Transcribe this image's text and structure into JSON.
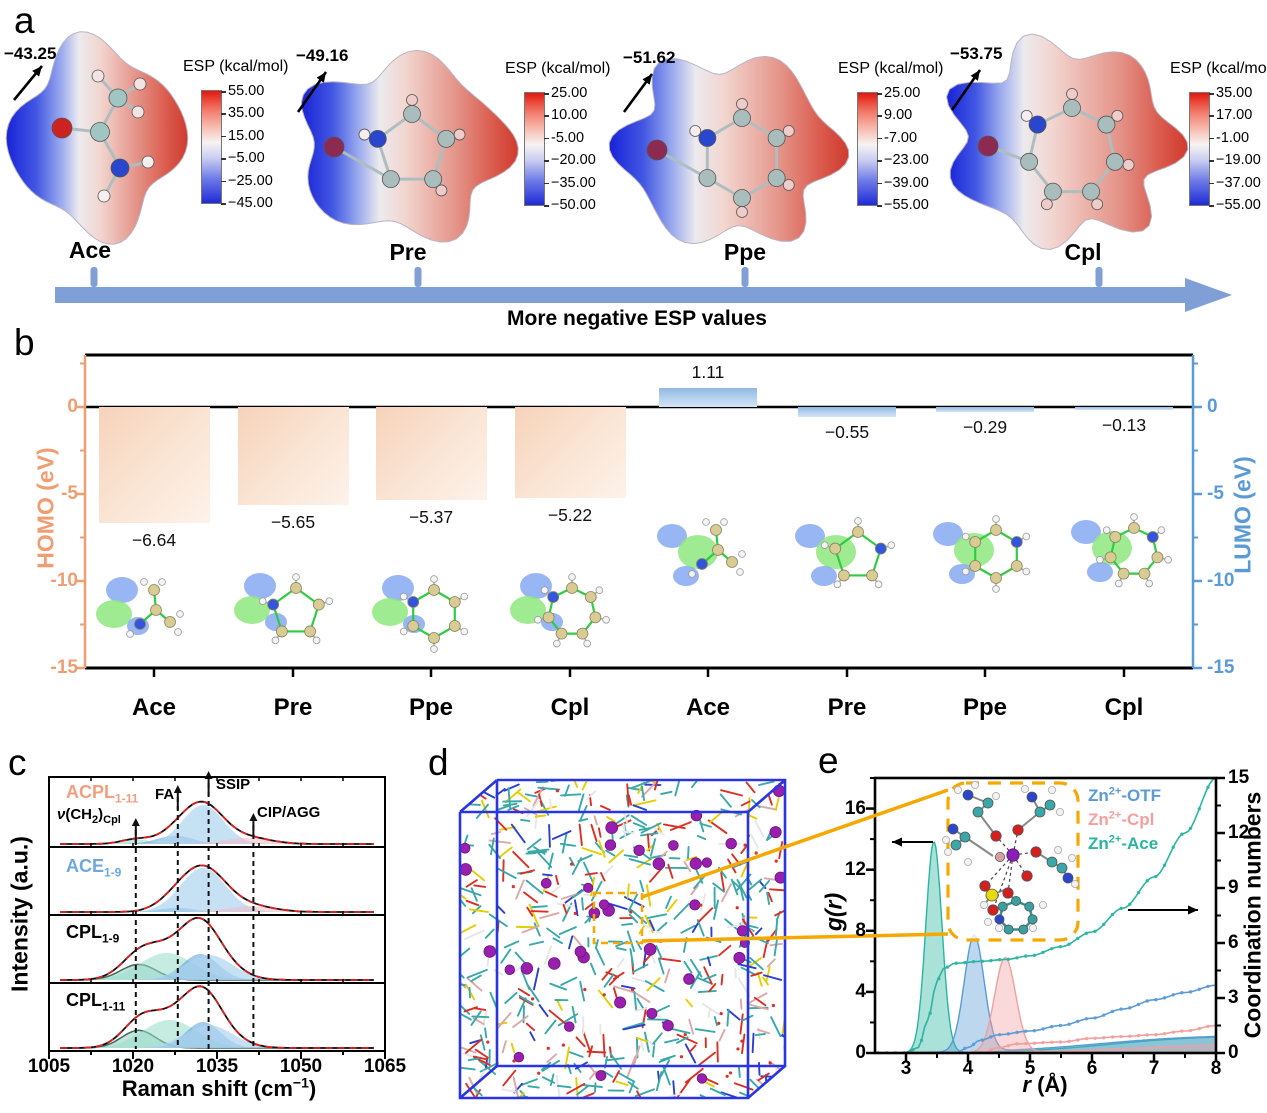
{
  "panel_a": {
    "label": "a",
    "caption": "More negative ESP values",
    "molecules": [
      {
        "name": "Ace",
        "esp_value": "−43.25",
        "cb_title": "ESP (kcal/mol)",
        "cb_ticks": [
          "55.00",
          "35.00",
          "15.00",
          "−5.00",
          "−25.00",
          "−45.00"
        ]
      },
      {
        "name": "Pre",
        "esp_value": "−49.16",
        "cb_title": "ESP (kcal/mol)",
        "cb_ticks": [
          "25.00",
          "10.00",
          "-5.00",
          "−20.00",
          "−35.00",
          "−50.00"
        ]
      },
      {
        "name": "Ppe",
        "esp_value": "−51.62",
        "cb_title": "ESP (kcal/mol)",
        "cb_ticks": [
          "25.00",
          "9.00",
          "-7.00",
          "−23.00",
          "−39.00",
          "−55.00"
        ]
      },
      {
        "name": "Cpl",
        "esp_value": "−53.75",
        "cb_title": "ESP (kcal/mol)",
        "cb_ticks": [
          "35.00",
          "17.00",
          "-1.00",
          "−19.00",
          "−37.00",
          "−55.00"
        ]
      }
    ]
  },
  "panel_b": {
    "label": "b",
    "homo_axis": "HOMO (eV)",
    "lumo_axis": "LUMO (eV)",
    "left_ticks": [
      "0",
      "-5",
      "-10",
      "-15"
    ],
    "right_ticks": [
      "0",
      "-5",
      "-10",
      "-15"
    ],
    "homo_values": [
      "−6.64",
      "−5.65",
      "−5.37",
      "−5.22"
    ],
    "lumo_values": [
      "1.11",
      "−0.55",
      "−0.29",
      "−0.13"
    ],
    "categories": [
      "Ace",
      "Pre",
      "Ppe",
      "Cpl",
      "Ace",
      "Pre",
      "Ppe",
      "Cpl"
    ]
  },
  "panel_c": {
    "label": "c",
    "ylabel": "Intensity (a.u.)",
    "xlabel": {
      "pre": "Raman shift (cm",
      "sup": "−1",
      "post": ")"
    },
    "xticks": [
      "1005",
      "1020",
      "1035",
      "1050",
      "1065"
    ],
    "spectra": [
      {
        "base": "ACPL",
        "sub": "1-11"
      },
      {
        "base": "ACE",
        "sub": "1-9"
      },
      {
        "base": "CPL",
        "sub": "1-9"
      },
      {
        "base": "CPL",
        "sub": "1-11"
      }
    ],
    "ann1": {
      "it": "ν",
      "p1": "(CH",
      "s1": "2",
      "p2": ")",
      "s2": "Cpl"
    },
    "ann2": "FA",
    "ann3": "SSIP",
    "ann4": "CIP/AGG"
  },
  "panel_d": {
    "label": "d"
  },
  "panel_e": {
    "label": "e",
    "ylabel_left": "g(r)",
    "ylabel_right": "Coordination numbers",
    "xlabel": {
      "it": "r",
      "rest": " (Å)"
    },
    "left_ticks": [
      "0",
      "4",
      "8",
      "12",
      "16"
    ],
    "right_ticks": [
      "0",
      "3",
      "6",
      "9",
      "12",
      "15"
    ],
    "xticks": [
      "3",
      "4",
      "5",
      "6",
      "7",
      "8"
    ],
    "legend": [
      {
        "base": "Zn",
        "sup": "2+",
        "rest": "-OTF",
        "color": "#5b9bd5"
      },
      {
        "base": "Zn",
        "sup": "2+",
        "rest": "-Cpl",
        "color": "#f19f9f"
      },
      {
        "base": "Zn",
        "sup": "2+",
        "rest": "-Ace",
        "color": "#2bb5a0"
      }
    ]
  },
  "chart_data": [
    {
      "id": "homo_lumo",
      "type": "bar",
      "categories": [
        "Ace",
        "Pre",
        "Ppe",
        "Cpl"
      ],
      "series": [
        {
          "name": "HOMO (eV)",
          "values": [
            -6.64,
            -5.65,
            -5.37,
            -5.22
          ]
        },
        {
          "name": "LUMO (eV)",
          "values": [
            1.11,
            -0.55,
            -0.29,
            -0.13
          ]
        }
      ],
      "ylabel_left": "HOMO (eV)",
      "ylabel_right": "LUMO (eV)",
      "ylim": [
        -15,
        3
      ]
    },
    {
      "id": "raman",
      "type": "area",
      "title": "",
      "xlabel": "Raman shift (cm−1)",
      "ylabel": "Intensity (a.u.)",
      "xlim": [
        1005,
        1065
      ],
      "dashed_lines": [
        1020.5,
        1028,
        1033.5,
        1041.5
      ],
      "annotations": [
        "ν(CH2)Cpl",
        "FA",
        "SSIP",
        "CIP/AGG"
      ],
      "spectra": [
        {
          "name": "ACPL1-11",
          "components": [
            {
              "color": "teal",
              "center": 1020.5,
              "sigma": 2.6,
              "amp": 0.09
            },
            {
              "color": "steel",
              "center": 1027.5,
              "sigma": 3.2,
              "amp": 0.16
            },
            {
              "color": "lblue",
              "center": 1032.5,
              "sigma": 3.6,
              "amp": 0.75
            },
            {
              "color": "pink",
              "center": 1040.5,
              "sigma": 4.0,
              "amp": 0.12
            }
          ]
        },
        {
          "name": "ACE1-9",
          "components": [
            {
              "color": "teal",
              "center": 1026.0,
              "sigma": 3.0,
              "amp": 0.06
            },
            {
              "color": "steel",
              "center": 1028.0,
              "sigma": 3.0,
              "amp": 0.08
            },
            {
              "color": "lblue",
              "center": 1032.5,
              "sigma": 4.0,
              "amp": 0.85
            },
            {
              "color": "pink",
              "center": 1041.0,
              "sigma": 4.2,
              "amp": 0.11
            }
          ]
        },
        {
          "name": "CPL1-9",
          "components": [
            {
              "color": "dteal",
              "center": 1021.0,
              "sigma": 3.2,
              "amp": 0.3
            },
            {
              "color": "teal",
              "center": 1026.0,
              "sigma": 4.8,
              "amp": 0.52
            },
            {
              "color": "steel",
              "center": 1032.0,
              "sigma": 3.2,
              "amp": 0.5
            },
            {
              "color": "lblue",
              "center": 1033.5,
              "sigma": 4.3,
              "amp": 0.48
            }
          ]
        },
        {
          "name": "CPL1-11",
          "components": [
            {
              "color": "dteal",
              "center": 1021.0,
              "sigma": 3.0,
              "amp": 0.34
            },
            {
              "color": "teal",
              "center": 1026.5,
              "sigma": 4.8,
              "amp": 0.54
            },
            {
              "color": "steel",
              "center": 1032.5,
              "sigma": 3.1,
              "amp": 0.5
            },
            {
              "color": "lblue",
              "center": 1033.5,
              "sigma": 4.3,
              "amp": 0.44
            }
          ]
        }
      ]
    },
    {
      "id": "rdf",
      "type": "line",
      "xlabel": "r (Å)",
      "ylabel_left": "g(r)",
      "ylabel_right": "Coordination numbers",
      "xlim": [
        2.5,
        8
      ],
      "ylim_left": [
        0,
        18
      ],
      "ylim_right": [
        0,
        15
      ],
      "gr_series": [
        {
          "name": "Zn2+-Ace",
          "color": "#2bb5a0",
          "peak": {
            "center": 3.45,
            "sigma": 0.13,
            "height": 13.8
          },
          "tail": {
            "mid": 6.3,
            "width": 0.75,
            "height": 1.15
          }
        },
        {
          "name": "Zn2+-OTF",
          "color": "#5b9bd5",
          "peak": {
            "center": 4.1,
            "sigma": 0.16,
            "height": 7.6
          },
          "tail": {
            "mid": 6.1,
            "width": 0.85,
            "height": 1.2
          }
        },
        {
          "name": "Zn2+-Cpl",
          "color": "#f19f9f",
          "peak": {
            "center": 4.6,
            "sigma": 0.17,
            "height": 6.2
          },
          "tail": {
            "mid": 6.6,
            "width": 0.8,
            "height": 0.6
          }
        }
      ],
      "cn_series": [
        {
          "name": "Zn2+-Ace",
          "color": "#2bb5a0",
          "points": [
            [
              3.0,
              0
            ],
            [
              3.2,
              0.3
            ],
            [
              3.35,
              1.8
            ],
            [
              3.5,
              3.9
            ],
            [
              3.6,
              4.6
            ],
            [
              3.8,
              4.9
            ],
            [
              4.2,
              5.0
            ],
            [
              4.6,
              5.1
            ],
            [
              5.0,
              5.3
            ],
            [
              5.5,
              5.8
            ],
            [
              6.0,
              6.6
            ],
            [
              6.5,
              7.9
            ],
            [
              7.0,
              9.6
            ],
            [
              7.5,
              12.0
            ],
            [
              8.0,
              15.0
            ]
          ]
        },
        {
          "name": "Zn2+-OTF",
          "color": "#5b9bd5",
          "points": [
            [
              3.8,
              0
            ],
            [
              4.0,
              0.3
            ],
            [
              4.2,
              0.7
            ],
            [
              4.5,
              1.0
            ],
            [
              5.0,
              1.2
            ],
            [
              5.5,
              1.5
            ],
            [
              6.0,
              1.9
            ],
            [
              6.5,
              2.4
            ],
            [
              7.0,
              2.9
            ],
            [
              7.5,
              3.3
            ],
            [
              8.0,
              3.7
            ]
          ]
        },
        {
          "name": "Zn2+-Cpl",
          "color": "#f19f9f",
          "points": [
            [
              4.2,
              0
            ],
            [
              4.5,
              0.3
            ],
            [
              4.8,
              0.5
            ],
            [
              5.5,
              0.6
            ],
            [
              6.0,
              0.8
            ],
            [
              6.5,
              0.9
            ],
            [
              7.0,
              1.0
            ],
            [
              7.5,
              1.2
            ],
            [
              8.0,
              1.5
            ]
          ]
        }
      ]
    }
  ]
}
